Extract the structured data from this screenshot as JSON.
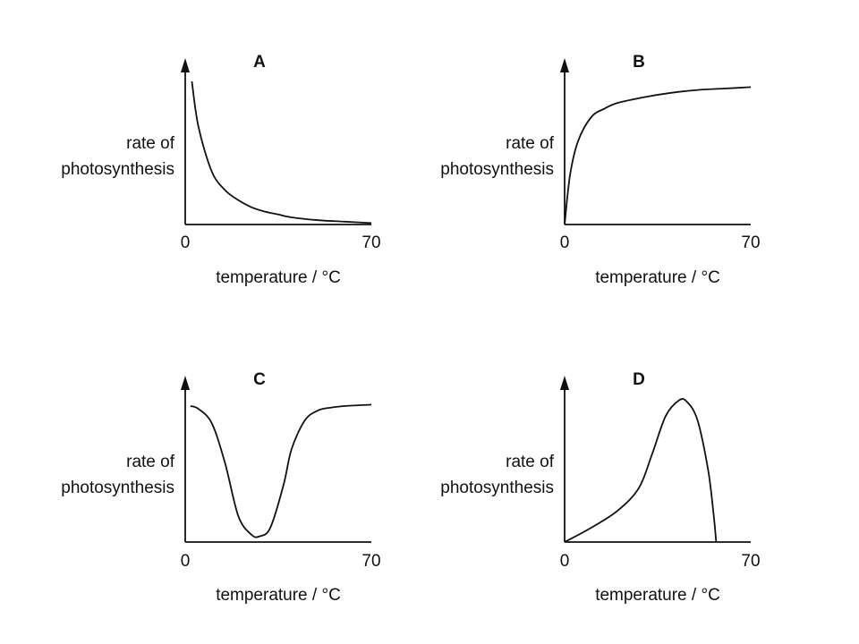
{
  "chart_data": [
    {
      "type": "line",
      "title": "A",
      "xlabel": "temperature / °C",
      "ylabel_line1": "rate of",
      "ylabel_line2": "photosynthesis",
      "xticks": [
        "0",
        "70"
      ],
      "xlim": [
        0,
        70
      ],
      "ylim": [
        0,
        1
      ],
      "series": [
        {
          "x": [
            2.5,
            5,
            10,
            15,
            20,
            25,
            30,
            35,
            40,
            50,
            60,
            70
          ],
          "y": [
            1.0,
            0.68,
            0.37,
            0.24,
            0.17,
            0.12,
            0.09,
            0.07,
            0.05,
            0.03,
            0.02,
            0.01
          ]
        }
      ]
    },
    {
      "type": "line",
      "title": "B",
      "xlabel": "temperature / °C",
      "ylabel_line1": "rate of",
      "ylabel_line2": "photosynthesis",
      "xticks": [
        "0",
        "70"
      ],
      "xlim": [
        0,
        70
      ],
      "ylim": [
        0,
        1
      ],
      "series": [
        {
          "x": [
            0,
            2,
            5,
            10,
            15,
            20,
            30,
            40,
            50,
            60,
            70
          ],
          "y": [
            0.0,
            0.34,
            0.58,
            0.75,
            0.81,
            0.85,
            0.89,
            0.92,
            0.94,
            0.95,
            0.96
          ]
        }
      ]
    },
    {
      "type": "line",
      "title": "C",
      "xlabel": "temperature / °C",
      "ylabel_line1": "rate of",
      "ylabel_line2": "photosynthesis",
      "xticks": [
        "0",
        "70"
      ],
      "xlim": [
        0,
        70
      ],
      "ylim": [
        0,
        1
      ],
      "series": [
        {
          "x": [
            2,
            5,
            10,
            15,
            20,
            25,
            28,
            32,
            37,
            40,
            45,
            50,
            55,
            60,
            70
          ],
          "y": [
            0.95,
            0.93,
            0.83,
            0.55,
            0.18,
            0.05,
            0.04,
            0.1,
            0.4,
            0.65,
            0.85,
            0.92,
            0.94,
            0.95,
            0.96
          ]
        }
      ]
    },
    {
      "type": "line",
      "title": "D",
      "xlabel": "temperature / °C",
      "ylabel_line1": "rate of",
      "ylabel_line2": "photosynthesis",
      "xticks": [
        "0",
        "70"
      ],
      "xlim": [
        0,
        70
      ],
      "ylim": [
        0,
        1
      ],
      "series": [
        {
          "x": [
            0,
            10,
            20,
            28,
            33,
            38,
            43,
            46,
            50,
            54,
            56,
            57
          ],
          "y": [
            0.0,
            0.1,
            0.22,
            0.38,
            0.62,
            0.88,
            0.99,
            0.98,
            0.85,
            0.5,
            0.2,
            0.0
          ]
        }
      ]
    }
  ]
}
